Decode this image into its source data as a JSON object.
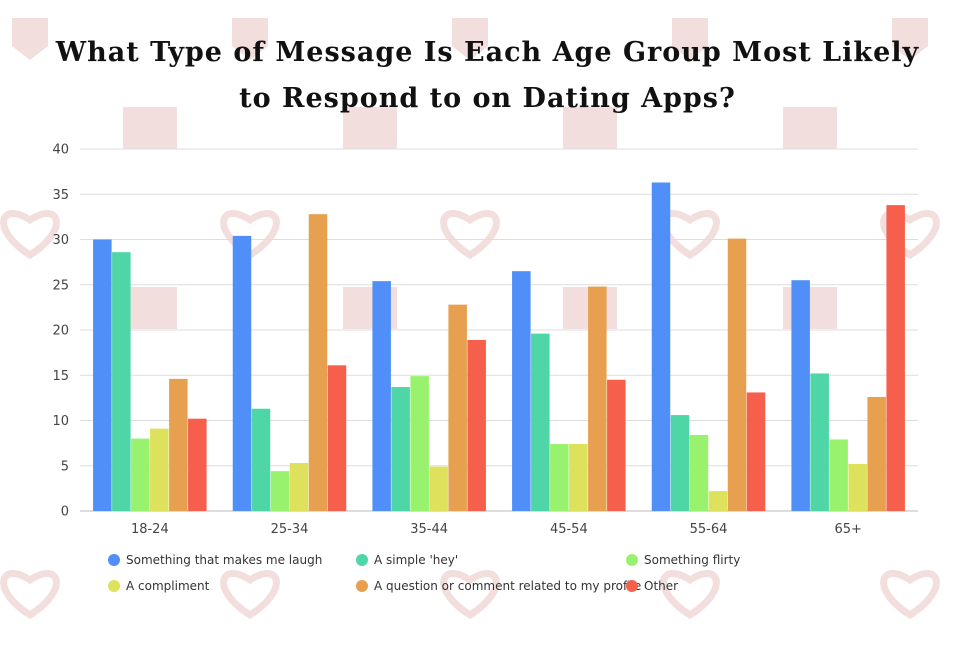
{
  "chart_data": {
    "type": "bar",
    "title": "What Type of Message Is Each Age Group Most Likely to Respond to on Dating Apps?",
    "categories": [
      "18-24",
      "25-34",
      "35-44",
      "45-54",
      "55-64",
      "65+"
    ],
    "series": [
      {
        "name": "Something that makes me laugh",
        "color": "#4f8ff7",
        "values": [
          30.0,
          30.4,
          25.4,
          26.5,
          36.3,
          25.5
        ]
      },
      {
        "name": "A simple 'hey'",
        "color": "#4fd6a7",
        "values": [
          28.6,
          11.3,
          13.7,
          19.6,
          10.6,
          15.2
        ]
      },
      {
        "name": "Something flirty",
        "color": "#99f26d",
        "values": [
          8.0,
          4.4,
          14.9,
          7.4,
          8.4,
          7.9
        ]
      },
      {
        "name": "A compliment",
        "color": "#dde15b",
        "values": [
          9.1,
          5.3,
          4.9,
          7.4,
          2.2,
          5.2
        ]
      },
      {
        "name": "A question or comment related to my profile",
        "color": "#e6a04f",
        "values": [
          14.6,
          32.8,
          22.8,
          24.8,
          30.1,
          12.6
        ]
      },
      {
        "name": "Other",
        "color": "#f55f4b",
        "values": [
          10.2,
          16.1,
          18.9,
          14.5,
          13.1,
          33.8
        ]
      }
    ],
    "yticks": [
      "0",
      "5",
      "10",
      "15",
      "20",
      "25",
      "30",
      "35",
      "40"
    ],
    "ylim": [
      0,
      40
    ],
    "xlabel": "",
    "ylabel": "",
    "grid": true,
    "legend": "bottom"
  },
  "colors": {
    "gridline": "#dddddd",
    "axis": "#bbbbbb",
    "watermark": "#f3dede"
  }
}
